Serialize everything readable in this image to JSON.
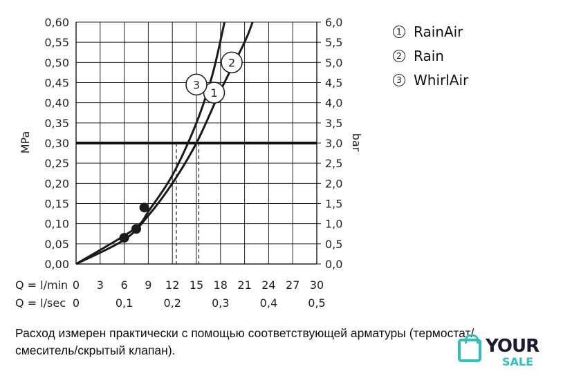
{
  "chart_data": {
    "type": "line",
    "left_axis": {
      "label": "MPa",
      "ticks": [
        "0,00",
        "0,05",
        "0,10",
        "0,15",
        "0,20",
        "0,25",
        "0,30",
        "0,35",
        "0,40",
        "0,45",
        "0,50",
        "0,55",
        "0,60"
      ],
      "range": [
        0,
        0.6
      ]
    },
    "right_axis": {
      "label": "bar",
      "ticks": [
        "0,0",
        "0,5",
        "1,0",
        "1,5",
        "2,0",
        "2,5",
        "3,0",
        "3,5",
        "4,0",
        "4,5",
        "5,0",
        "5,5",
        "6,0"
      ],
      "range": [
        0,
        6
      ]
    },
    "x_axis": {
      "range": [
        0,
        30
      ],
      "row1_label": "Q = l/min",
      "row1_ticks": [
        "0",
        "3",
        "6",
        "9",
        "12",
        "15",
        "18",
        "21",
        "24",
        "27",
        "30"
      ],
      "row2_label": "Q = l/sec",
      "row2_ticks": [
        "0",
        "0,1",
        "0,2",
        "0,3",
        "0,4",
        "0,5"
      ]
    },
    "grid": true,
    "reference_line": {
      "y": 0.3
    },
    "series": [
      {
        "marker": "1",
        "x": [
          0,
          6,
          9,
          12,
          15,
          18,
          21,
          22
        ],
        "y": [
          0,
          0.06,
          0.12,
          0.2,
          0.3,
          0.43,
          0.55,
          0.6
        ]
      },
      {
        "marker": "2",
        "x": [
          0,
          6,
          9,
          12,
          15,
          18,
          21,
          22
        ],
        "y": [
          0,
          0.06,
          0.12,
          0.2,
          0.3,
          0.43,
          0.55,
          0.6
        ]
      },
      {
        "marker": "3",
        "x": [
          0,
          6,
          8,
          9,
          12,
          15,
          17,
          18.5
        ],
        "y": [
          0,
          0.07,
          0.1,
          0.13,
          0.22,
          0.35,
          0.47,
          0.6
        ]
      }
    ],
    "points": [
      {
        "x": 6,
        "y": 0.065
      },
      {
        "x": 7.5,
        "y": 0.087
      },
      {
        "x": 8.5,
        "y": 0.14
      }
    ],
    "dashed_markers": [
      {
        "x": 12.5,
        "y": 0.3
      },
      {
        "x": 15.3,
        "y": 0.3
      }
    ]
  },
  "legend": [
    {
      "mark": "1",
      "label": "RainAir"
    },
    {
      "mark": "2",
      "label": "Rain"
    },
    {
      "mark": "3",
      "label": "WhirlAir"
    }
  ],
  "caption": {
    "line1": "Расход измерен практически с помощью соответствующей арматуры (термостат/",
    "line2": "смеситель/скрытый клапан)."
  },
  "watermark": {
    "text1": "YOUR",
    "text2": "SALE"
  }
}
